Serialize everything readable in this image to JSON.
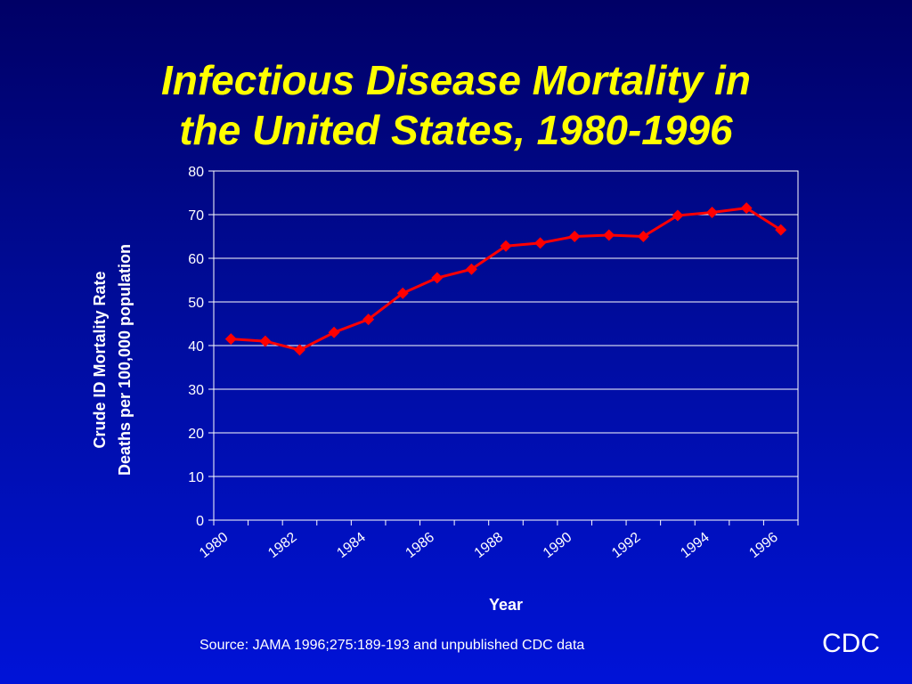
{
  "slide": {
    "title_line1": "Infectious Disease Mortality in",
    "title_line2": "the United States, 1980-1996",
    "source": "Source: JAMA 1996;275:189-193 and unpublished CDC data",
    "org": "CDC"
  },
  "colors": {
    "title": "#ffff00",
    "series": "#ff0000",
    "text": "#ffffff"
  },
  "chart_data": {
    "type": "line",
    "title": "Infectious Disease Mortality in the United States, 1980-1996",
    "xlabel": "Year",
    "ylabel_line1": "Crude ID Mortality Rate",
    "ylabel_line2": "Deaths per 100,000 population",
    "x": [
      1980,
      1981,
      1982,
      1983,
      1984,
      1985,
      1986,
      1987,
      1988,
      1989,
      1990,
      1991,
      1992,
      1993,
      1994,
      1995,
      1996
    ],
    "series": [
      {
        "values": [
          41.5,
          41,
          39,
          43,
          46,
          52,
          55.5,
          57.5,
          62.8,
          63.5,
          65,
          65.3,
          65,
          69.8,
          70.5,
          71.5,
          66.5
        ]
      }
    ],
    "xticks": [
      "1980",
      "1982",
      "1984",
      "1986",
      "1988",
      "1990",
      "1992",
      "1994",
      "1996"
    ],
    "yticks": [
      0,
      10,
      20,
      30,
      40,
      50,
      60,
      70,
      80
    ],
    "ylim": [
      0,
      80
    ],
    "grid": true,
    "legend": "none",
    "marker": "diamond"
  }
}
